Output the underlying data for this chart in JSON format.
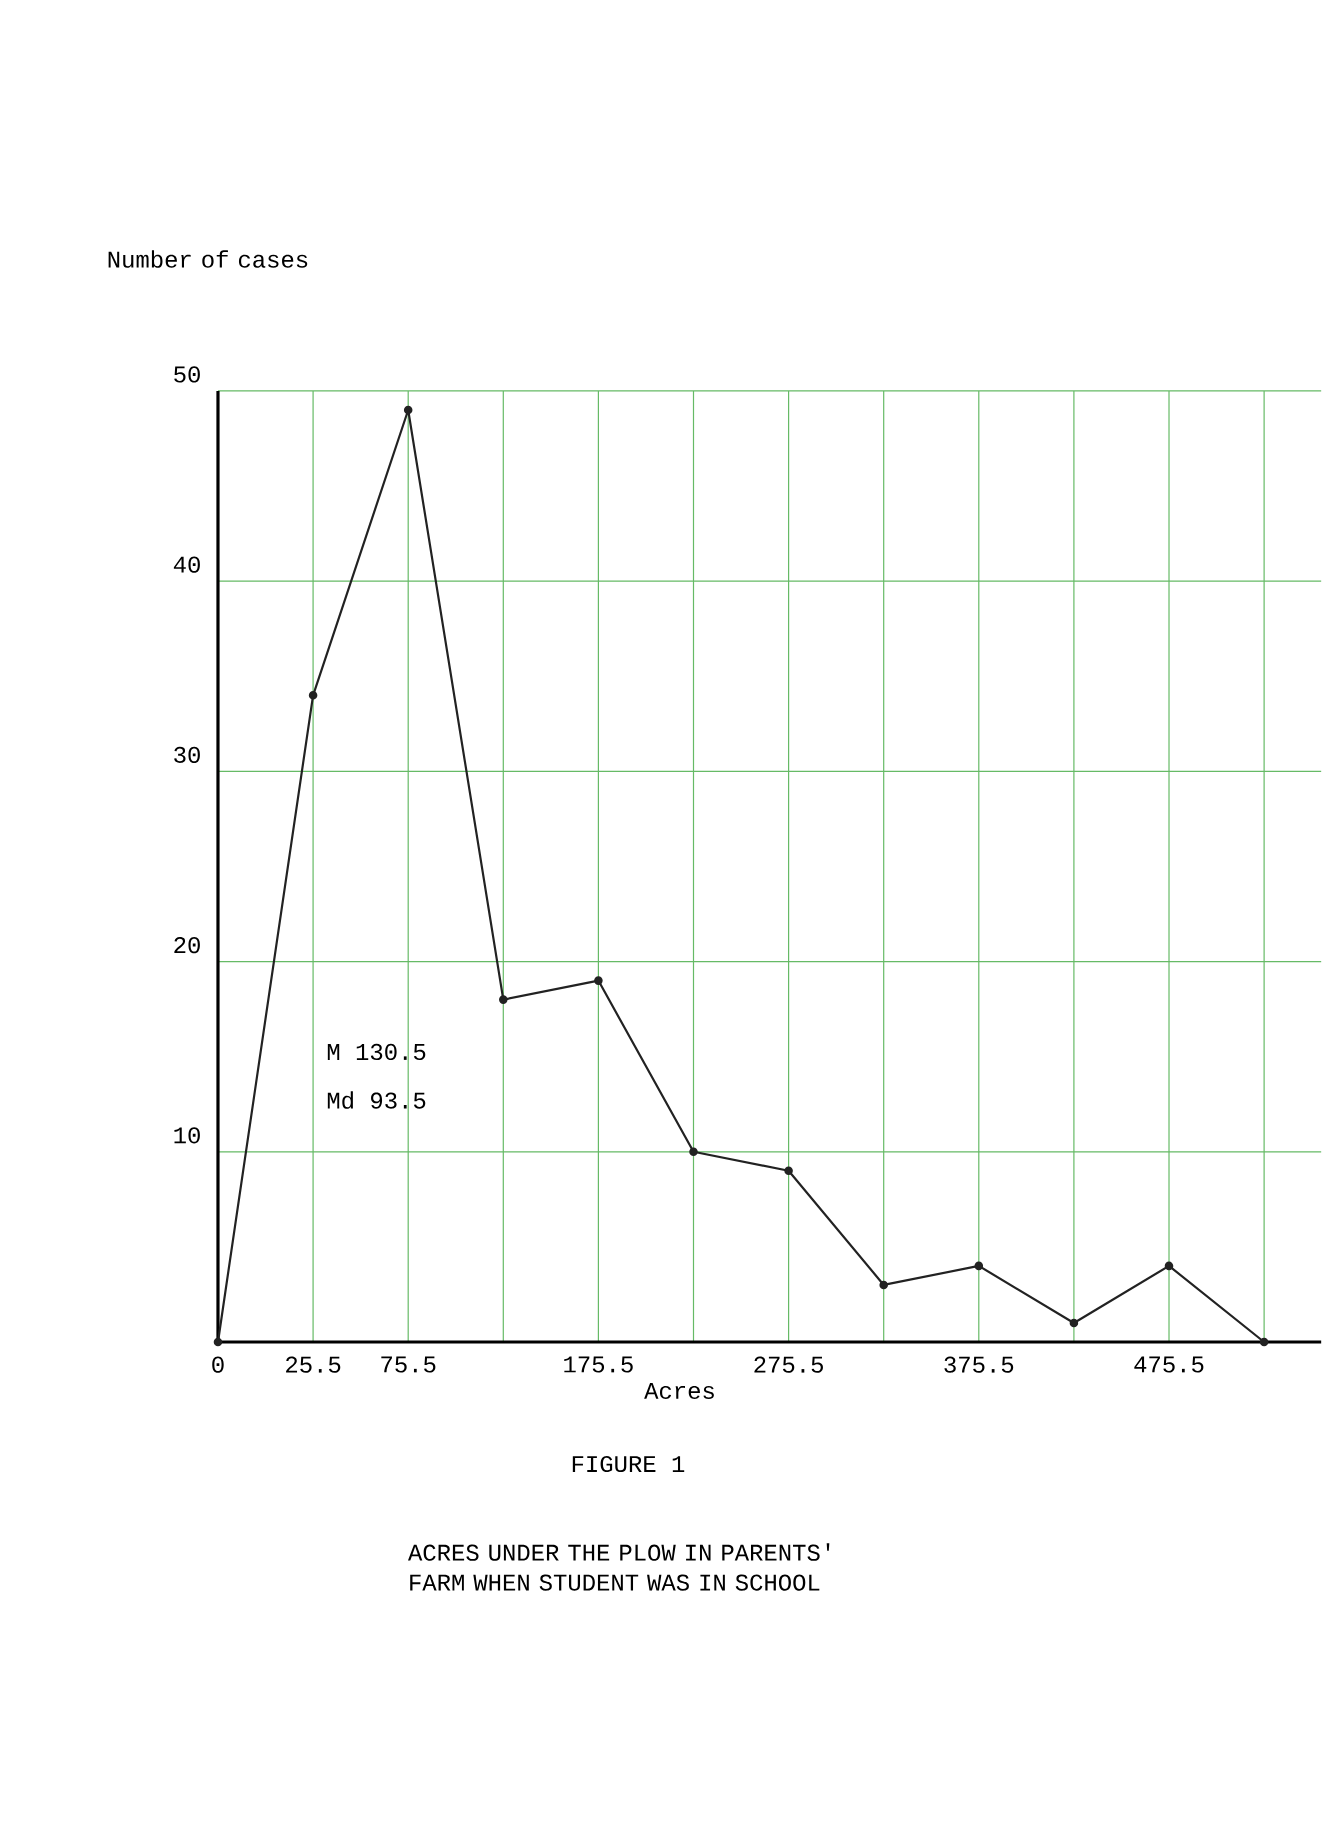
{
  "chart_data": {
    "type": "line",
    "title": "FIGURE 1",
    "subtitle": "ACRES UNDER THE PLOW IN PARENTS' FARM WHEN STUDENT WAS IN SCHOOL",
    "xlabel": "Acres",
    "ylabel": "Number of cases",
    "categories": [
      "0",
      "25.5",
      "75.5",
      null,
      "175.5",
      null,
      "275.5",
      null,
      "375.5",
      null,
      "475.5",
      null
    ],
    "series": [
      {
        "color": "#222222",
        "values": [
          0,
          34,
          49,
          18,
          19,
          10,
          9,
          3,
          4,
          1,
          4,
          0
        ]
      }
    ],
    "ylim": [
      0,
      50
    ],
    "yticks": [
      10,
      20,
      30,
      40,
      50
    ],
    "annotations": [
      "M 130.5",
      "Md 93.5"
    ],
    "grid": true,
    "marker": "circle",
    "line_style": "solid"
  }
}
